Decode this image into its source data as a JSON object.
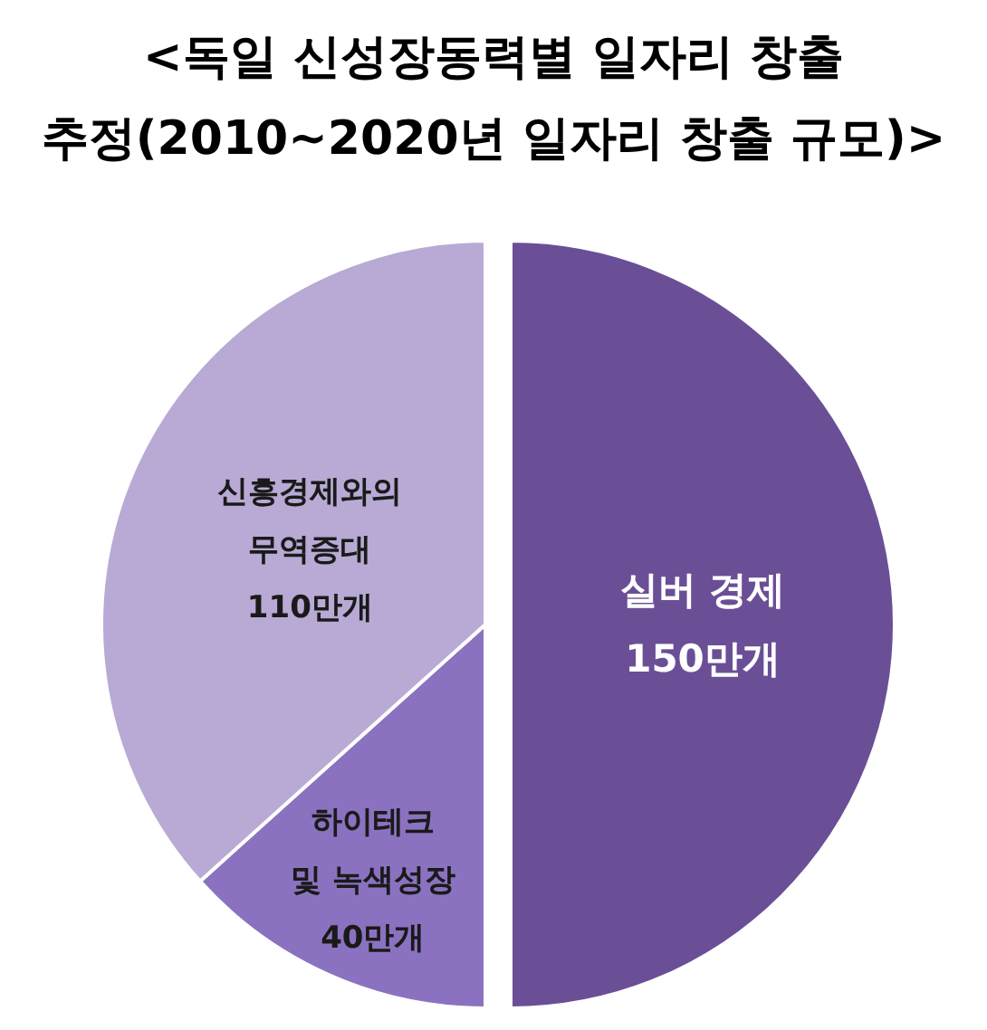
{
  "chart_data": {
    "type": "pie",
    "title": "<독일 신성장동력별 일자리 창출\n추정(2010~2020년 일자리 창출 규모)>",
    "categories": [
      "실버 경제",
      "하이테크\n및 녹색성장",
      "신흥경제와의\n무역증대"
    ],
    "values": [
      150,
      40,
      110
    ],
    "value_labels": [
      "150만개",
      "40만개",
      "110만개"
    ],
    "colors": [
      "#6a4f97",
      "#8b72c0",
      "#b8aad4"
    ]
  }
}
